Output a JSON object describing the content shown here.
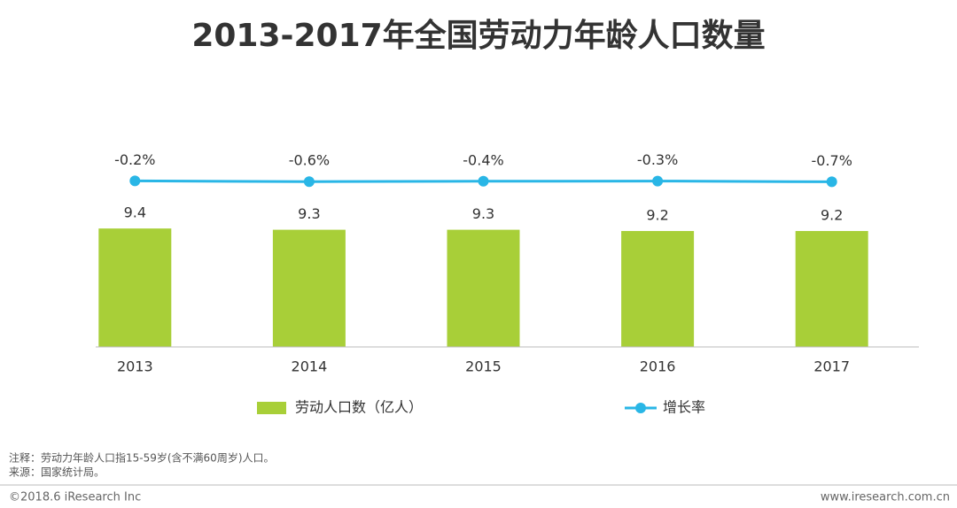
{
  "chart_data": {
    "type": "bar",
    "title": "2013-2017年全国劳动力年龄人口数量",
    "categories": [
      "2013",
      "2014",
      "2015",
      "2016",
      "2017"
    ],
    "series": [
      {
        "name": "劳动人口数（亿人）",
        "type": "bar",
        "color": "#a8cf38",
        "values": [
          9.4,
          9.3,
          9.3,
          9.2,
          9.2
        ]
      },
      {
        "name": "增长率",
        "type": "line",
        "axis": "y2",
        "color": "#29b6e6",
        "values": [
          -0.2,
          -0.6,
          -0.4,
          -0.3,
          -0.7
        ],
        "value_labels": [
          "-0.2%",
          "-0.6%",
          "-0.4%",
          "-0.3%",
          "-0.7%"
        ]
      }
    ],
    "ylim": [
      0,
      17
    ],
    "y2lim": [
      -94,
      27
    ],
    "legend": "bottom",
    "notes": [
      "注释：劳动力年龄人口指15-59岁(含不满60周岁)人口。",
      "来源：国家统计局。"
    ],
    "copyright": "©2018.6 iResearch Inc",
    "website": "www.iresearch.com.cn"
  }
}
